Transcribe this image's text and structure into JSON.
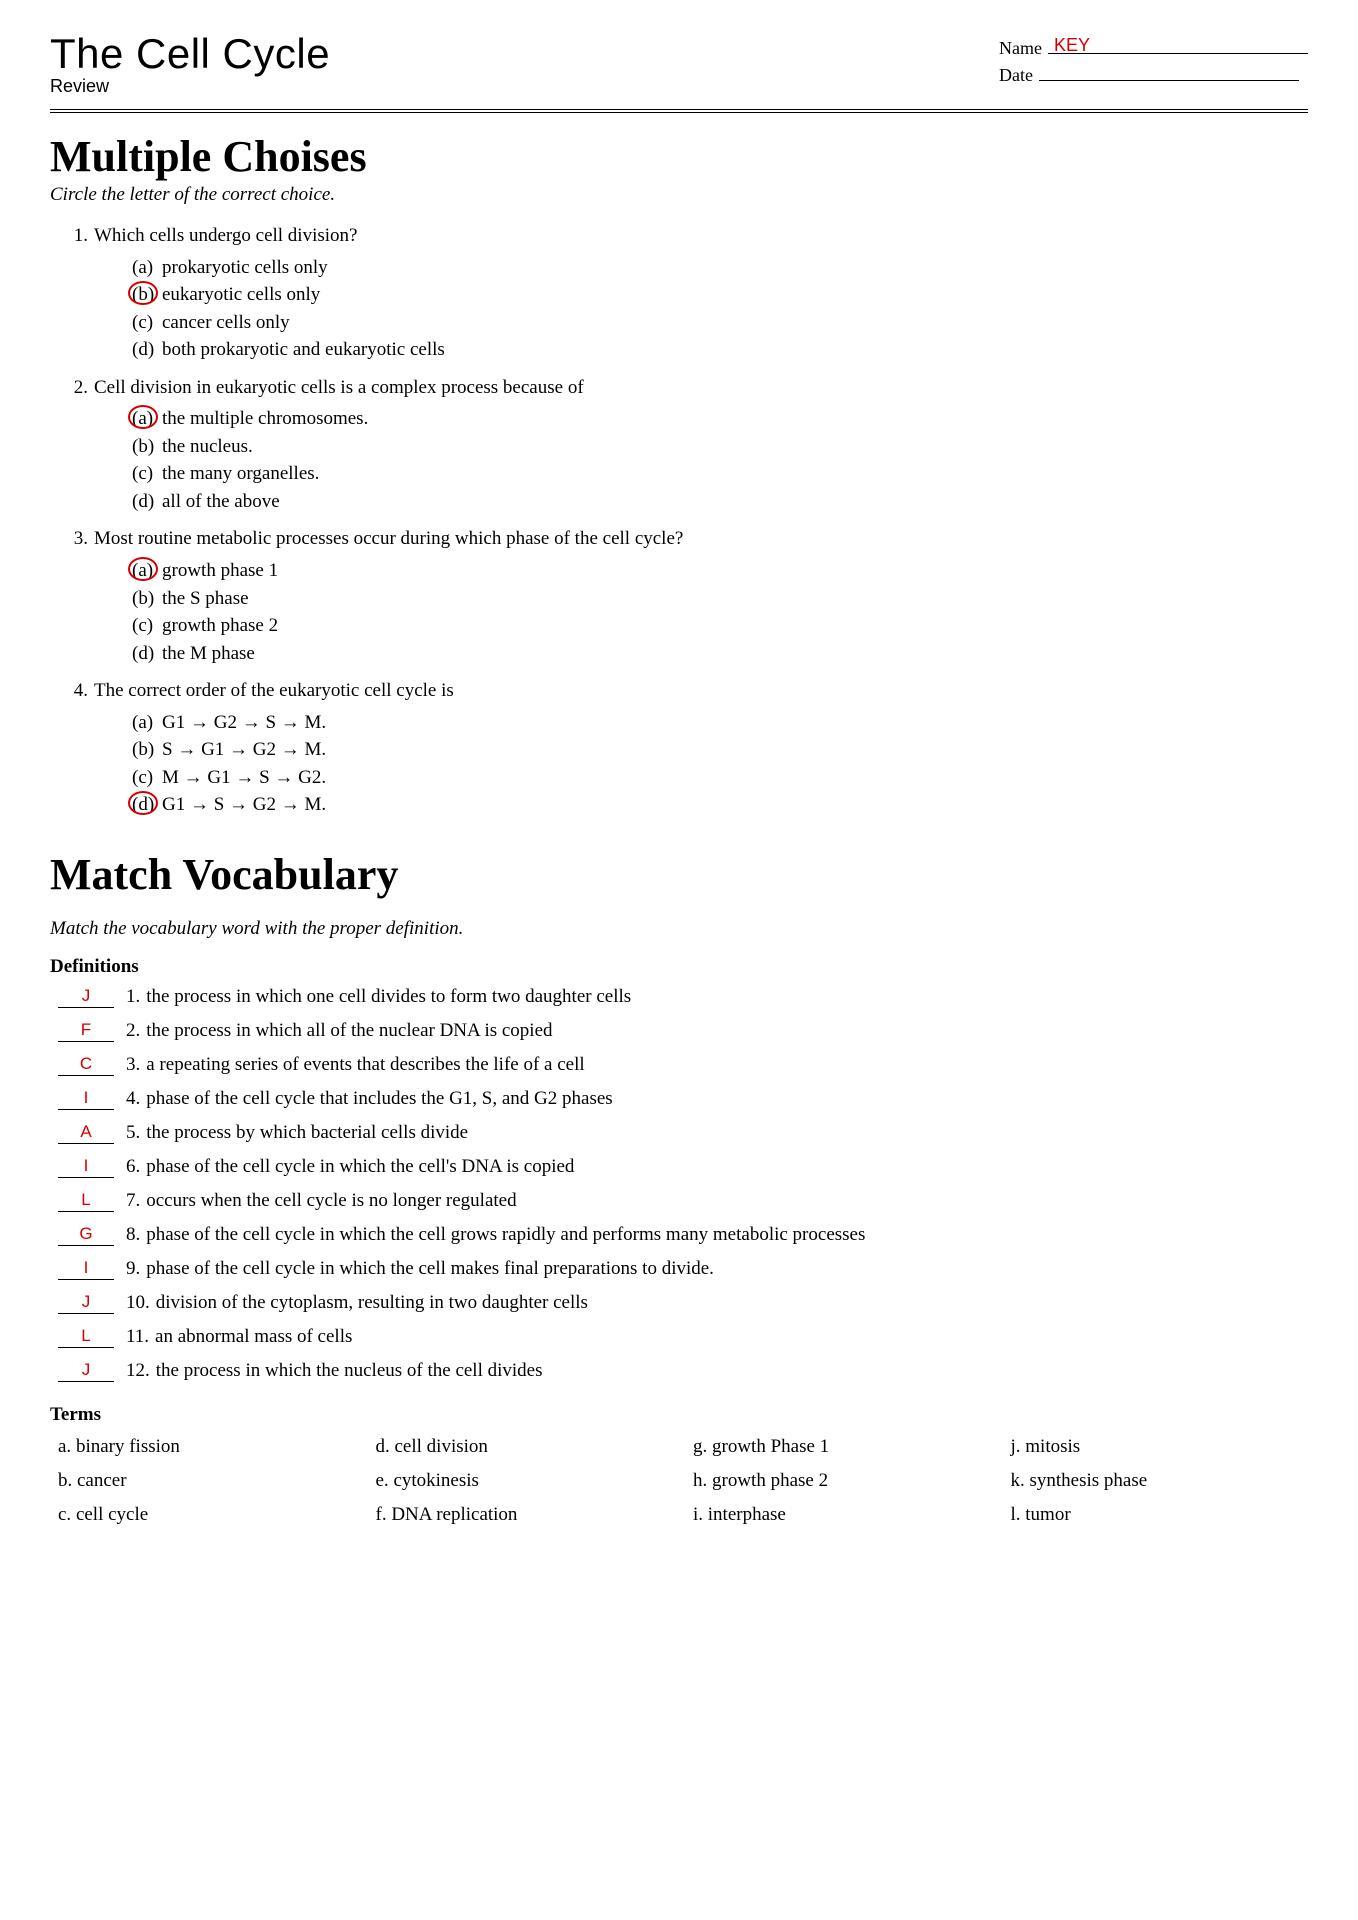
{
  "colors": {
    "answer_red": "#d40000",
    "text": "#000000",
    "bg": "#ffffff"
  },
  "typography": {
    "title_font": "Segoe UI Light / sans-serif",
    "title_fontsize_pt": 32,
    "body_font": "Georgia / serif",
    "body_fontsize_pt": 14,
    "section_title_fontsize_pt": 33,
    "section_title_weight": 700
  },
  "header": {
    "title": "The Cell Cycle",
    "subtitle": "Review",
    "name_label": "Name",
    "name_value": "KEY",
    "date_label": "Date",
    "date_value": ""
  },
  "mc": {
    "heading": "Multiple Choises",
    "instruction": "Circle the letter of the correct choice.",
    "questions": [
      {
        "num": "1.",
        "text": "Which cells undergo cell division?",
        "choices": [
          {
            "letter": "(a)",
            "text": "prokaryotic cells only",
            "circled": false
          },
          {
            "letter": "(b)",
            "text": "eukaryotic cells only",
            "circled": true
          },
          {
            "letter": "(c)",
            "text": "cancer cells only",
            "circled": false
          },
          {
            "letter": "(d)",
            "text": "both prokaryotic and eukaryotic cells",
            "circled": false
          }
        ]
      },
      {
        "num": "2.",
        "text": "Cell division in eukaryotic cells is a complex process because of",
        "choices": [
          {
            "letter": "(a)",
            "text": "the multiple chromosomes.",
            "circled": true
          },
          {
            "letter": "(b)",
            "text": "the nucleus.",
            "circled": false
          },
          {
            "letter": "(c)",
            "text": "the many organelles.",
            "circled": false
          },
          {
            "letter": "(d)",
            "text": "all of the above",
            "circled": false
          }
        ]
      },
      {
        "num": "3.",
        "text": "Most routine metabolic processes occur during which phase of the cell cycle?",
        "choices": [
          {
            "letter": "(a)",
            "text": "growth phase 1",
            "circled": true
          },
          {
            "letter": "(b)",
            "text": "the S phase",
            "circled": false
          },
          {
            "letter": "(c)",
            "text": "growth phase 2",
            "circled": false
          },
          {
            "letter": "(d)",
            "text": "the M phase",
            "circled": false
          }
        ]
      },
      {
        "num": "4.",
        "text": "The correct order of the eukaryotic cell cycle is",
        "choices": [
          {
            "letter": "(a)",
            "text": "G1 → G2 → S → M.",
            "circled": false
          },
          {
            "letter": "(b)",
            "text": "S → G1 → G2 → M.",
            "circled": false
          },
          {
            "letter": "(c)",
            "text": "M → G1 → S → G2.",
            "circled": false
          },
          {
            "letter": "(d)",
            "text": "G1 → S → G2 → M.",
            "circled": true
          }
        ]
      }
    ]
  },
  "match": {
    "heading": "Match Vocabulary",
    "instruction": "Match the vocabulary word with the proper definition.",
    "defs_heading": "Definitions",
    "definitions": [
      {
        "answer": "J",
        "num": "1.",
        "text": "the process in which one cell divides to form two daughter cells"
      },
      {
        "answer": "F",
        "num": "2.",
        "text": "the process in which all of the nuclear DNA is copied"
      },
      {
        "answer": "C",
        "num": "3.",
        "text": "a repeating series of events that describes the life of a cell"
      },
      {
        "answer": "I",
        "num": "4.",
        "text": "phase of the cell cycle that includes the G1, S, and G2 phases"
      },
      {
        "answer": "A",
        "num": "5.",
        "text": "the process by which bacterial cells divide"
      },
      {
        "answer": "I",
        "num": "6.",
        "text": "phase of the cell cycle in which the cell's DNA is copied"
      },
      {
        "answer": "L",
        "num": "7.",
        "text": "occurs when the cell cycle is no longer regulated"
      },
      {
        "answer": "G",
        "num": "8.",
        "text": "phase of the cell cycle in which the cell grows rapidly and performs many metabolic processes"
      },
      {
        "answer": "I",
        "num": "9.",
        "text": "phase of the cell cycle in which the cell makes final preparations to divide."
      },
      {
        "answer": "J",
        "num": "10.",
        "text": "division of the cytoplasm, resulting in two daughter cells"
      },
      {
        "answer": "L",
        "num": "11.",
        "text": "an abnormal mass of cells"
      },
      {
        "answer": "J",
        "num": "12.",
        "text": "the process in which the nucleus of the cell divides"
      }
    ],
    "terms_heading": "Terms",
    "terms": [
      {
        "letter": "a.",
        "word": "binary fission"
      },
      {
        "letter": "b.",
        "word": "cancer"
      },
      {
        "letter": "c.",
        "word": "cell cycle"
      },
      {
        "letter": "d.",
        "word": "cell division"
      },
      {
        "letter": "e.",
        "word": "cytokinesis"
      },
      {
        "letter": "f.",
        "word": "DNA replication"
      },
      {
        "letter": "g.",
        "word": "growth Phase 1"
      },
      {
        "letter": "h.",
        "word": "growth phase 2"
      },
      {
        "letter": "i.",
        "word": "interphase"
      },
      {
        "letter": "j.",
        "word": "mitosis"
      },
      {
        "letter": "k.",
        "word": "synthesis phase"
      },
      {
        "letter": "l.",
        "word": "tumor"
      }
    ]
  }
}
